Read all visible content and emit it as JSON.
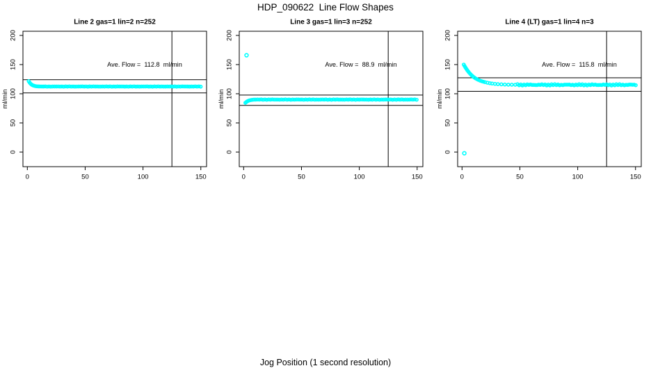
{
  "chart_data": {
    "type": "scatter",
    "title": "HDP_090622  Line Flow Shapes",
    "xlabel": "Jog Position (1 second resolution)",
    "ylabel": "ml/min",
    "x_ticks": [
      0,
      50,
      100,
      150
    ],
    "y_ticks": [
      0,
      50,
      100,
      150,
      200
    ],
    "xlim": [
      -4,
      155
    ],
    "ylim": [
      -25,
      207
    ],
    "grid": false,
    "point_color": "#00FFFF",
    "line_color": "#000000",
    "plots": [
      {
        "title": "Line 2 gas=1 lin=2 n=252",
        "annotation": "Ave. Flow =  112.8  ml/min",
        "ave_flow_ml_min": 112.8,
        "hlines": [
          124.1,
          101.5
        ],
        "vline_x": 125,
        "points": [
          [
            1.2,
            121.5
          ],
          [
            2,
            119
          ],
          [
            2.8,
            117.2
          ],
          [
            3.6,
            115.8
          ],
          [
            4.4,
            114.8
          ],
          [
            5.2,
            114.1
          ],
          [
            6,
            113.6
          ],
          [
            7,
            113.1
          ],
          [
            8,
            112.8
          ],
          [
            9,
            112.65
          ],
          [
            10,
            112.55
          ],
          [
            11.2,
            112.5
          ],
          [
            12.6,
            112.45
          ],
          [
            14,
            112.4
          ]
        ],
        "run": {
          "x0": 15.5,
          "x1": 151,
          "step": 1.6,
          "y": 112.4,
          "amp": 0.18
        },
        "outliers": []
      },
      {
        "title": "Line 3 gas=1 lin=3 n=252",
        "annotation": "Ave. Flow =  88.9  ml/min",
        "ave_flow_ml_min": 88.9,
        "hlines": [
          97.8,
          80.0
        ],
        "vline_x": 125,
        "points": [
          [
            1.5,
            84.5
          ],
          [
            2.3,
            85.8
          ],
          [
            3.1,
            86.9
          ],
          [
            3.9,
            87.8
          ],
          [
            4.8,
            88.5
          ],
          [
            5.7,
            89
          ],
          [
            6.7,
            89.4
          ],
          [
            7.8,
            89.7
          ],
          [
            9,
            89.9
          ]
        ],
        "run": {
          "x0": 10.4,
          "x1": 151,
          "step": 1.6,
          "y": 90,
          "amp": 0.22
        },
        "outliers": [
          [
            2.5,
            166
          ]
        ]
      },
      {
        "title": "Line 4 (LT) gas=1 lin=4 n=3",
        "annotation": "Ave. Flow =  115.8  ml/min",
        "ave_flow_ml_min": 115.8,
        "hlines": [
          127.4,
          104.2
        ],
        "vline_x": 125,
        "points": [
          [
            1.5,
            150
          ],
          [
            2.2,
            147.5
          ],
          [
            3,
            144.9
          ],
          [
            3.8,
            142.5
          ],
          [
            4.6,
            140.2
          ],
          [
            5.5,
            137.8
          ],
          [
            6.5,
            135.4
          ],
          [
            7.5,
            133.2
          ],
          [
            8.5,
            131.3
          ],
          [
            9.5,
            129.5
          ],
          [
            10.5,
            128
          ],
          [
            11.5,
            126.6
          ],
          [
            12.8,
            125.1
          ],
          [
            14,
            123.9
          ],
          [
            15.5,
            122.6
          ],
          [
            17,
            121.5
          ],
          [
            18.5,
            120.6
          ],
          [
            20,
            119.8
          ],
          [
            22,
            118.9
          ],
          [
            24,
            118.1
          ],
          [
            26,
            117.5
          ],
          [
            28.5,
            116.9
          ],
          [
            31,
            116.5
          ],
          [
            34,
            116.1
          ],
          [
            37,
            115.8
          ],
          [
            40,
            115.6
          ],
          [
            43,
            115.5
          ],
          [
            46,
            115.4
          ]
        ],
        "run": {
          "x0": 48,
          "x1": 151,
          "step": 1.4,
          "y": 115.3,
          "amp": 0.75
        },
        "outliers": [
          [
            2,
            -2
          ]
        ]
      }
    ]
  }
}
